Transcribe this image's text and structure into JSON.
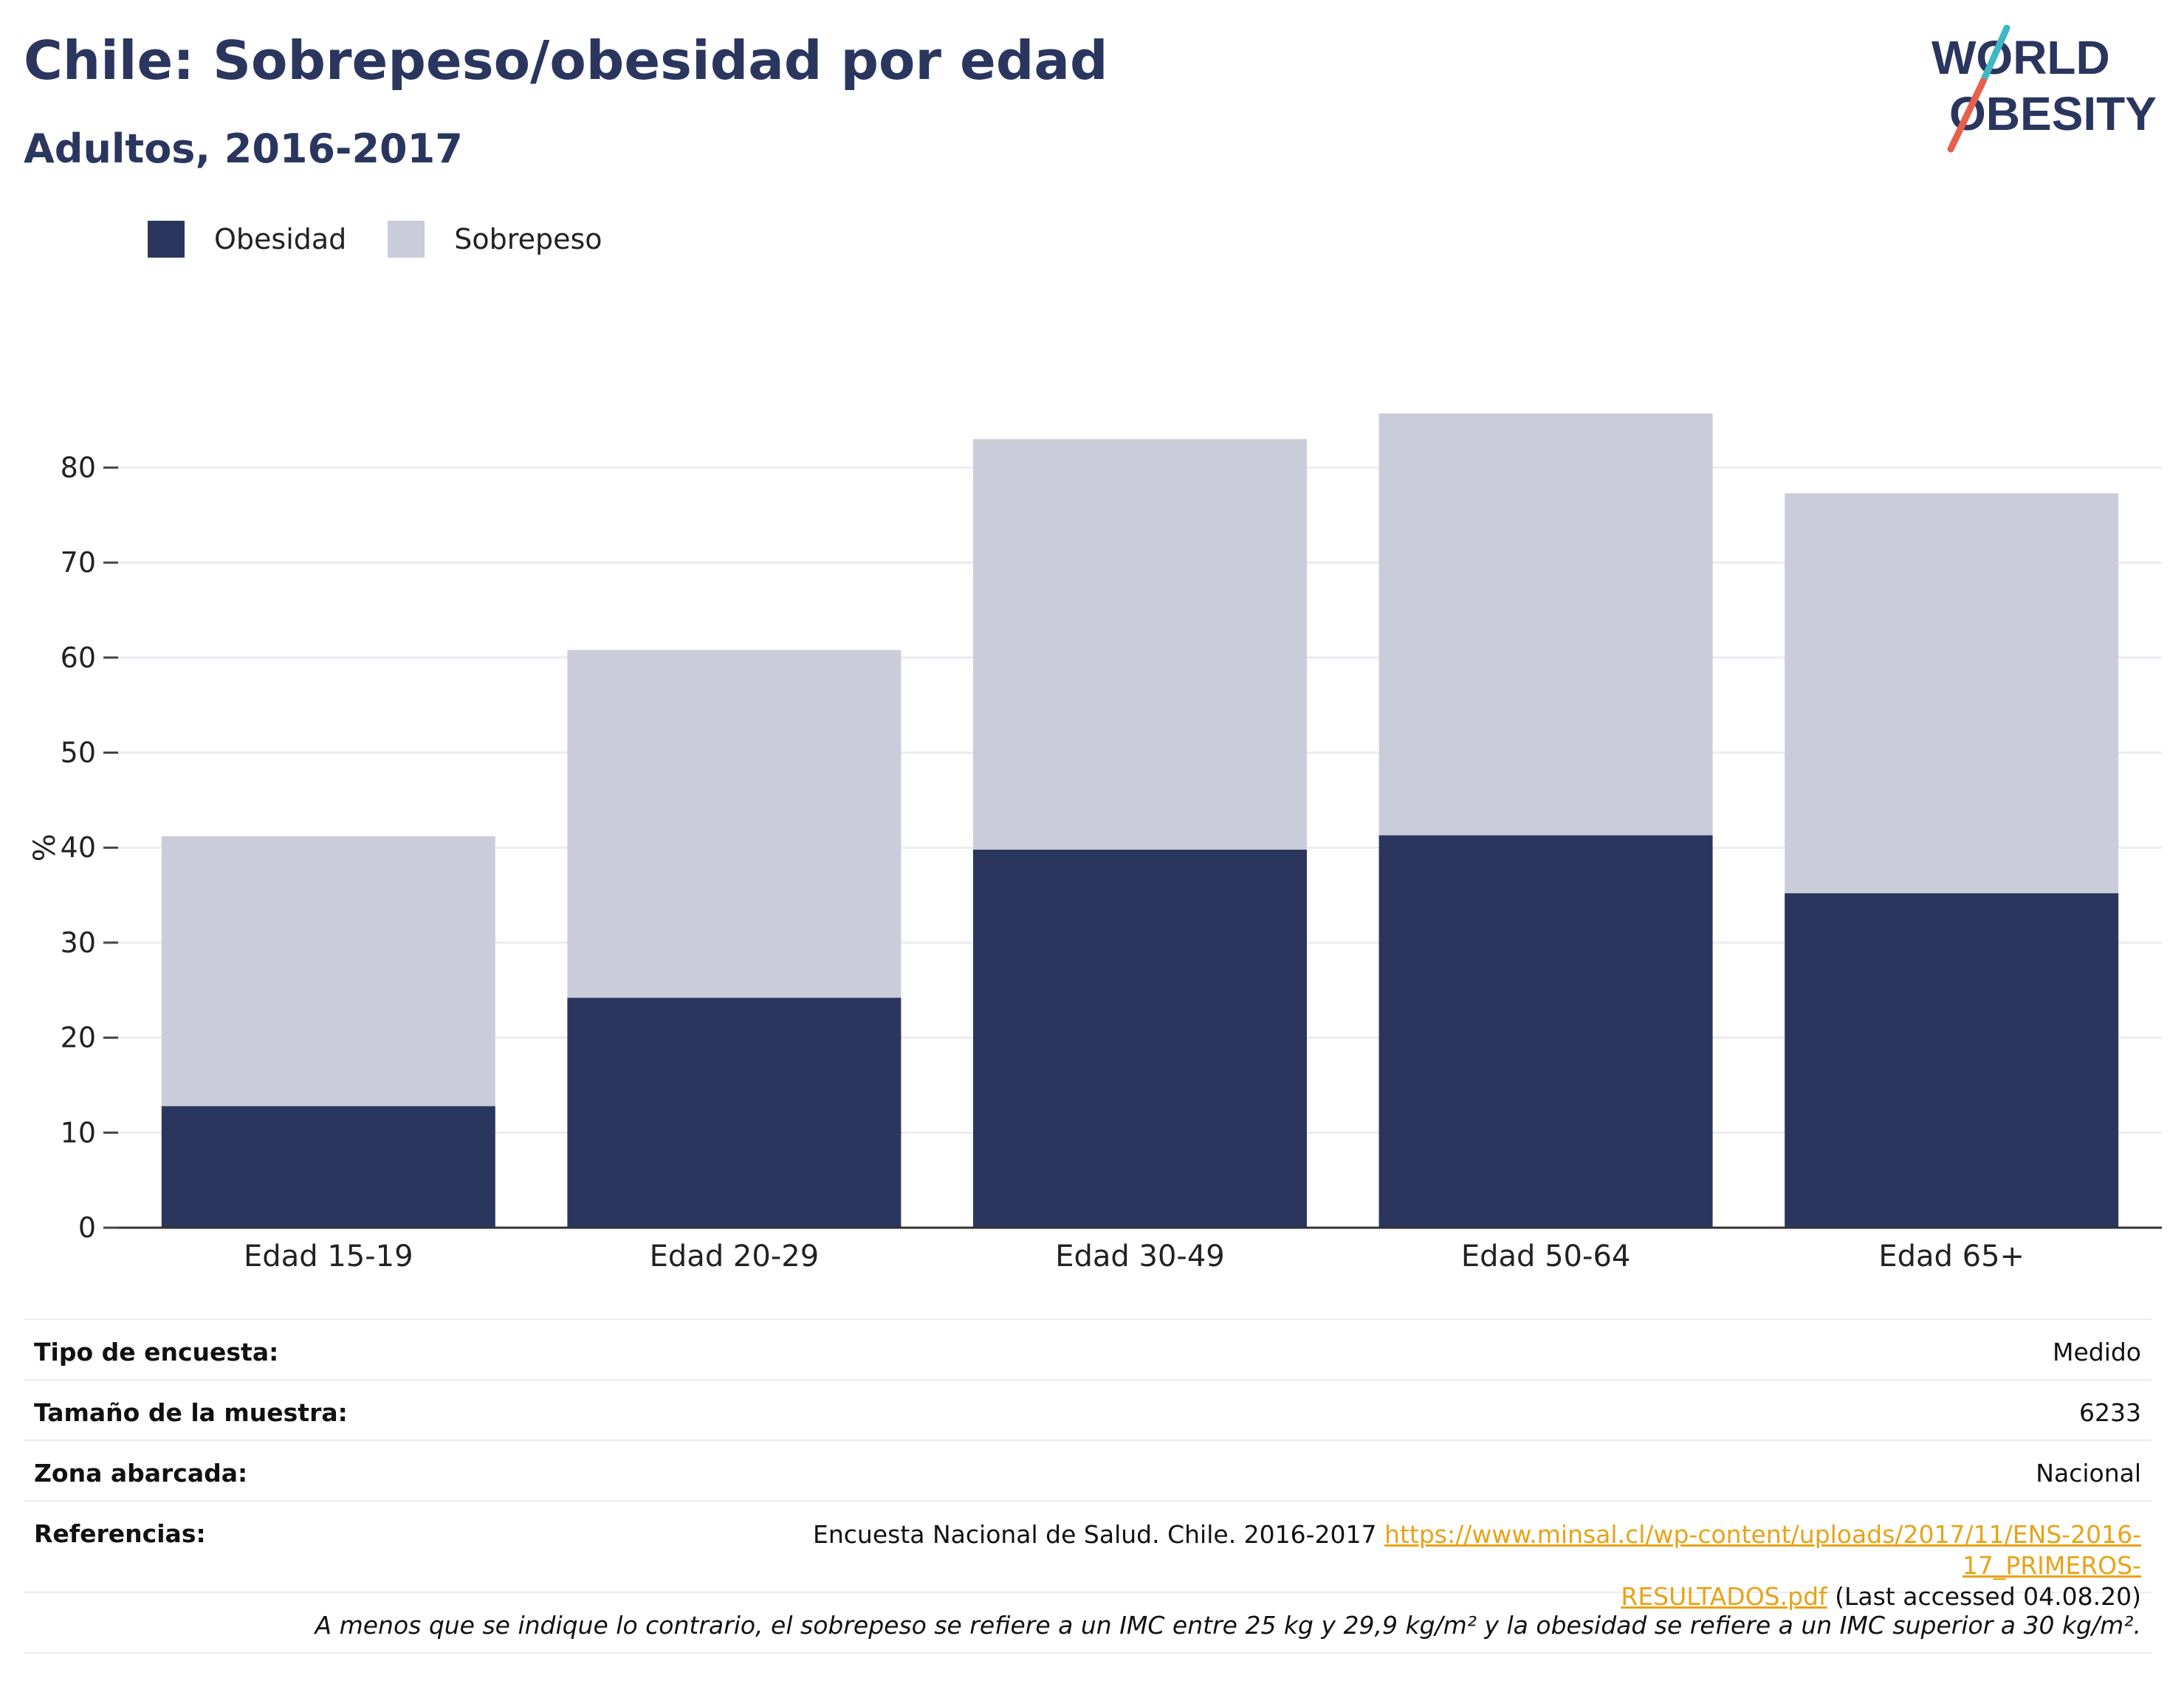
{
  "header": {
    "title": "Chile: Sobrepeso/obesidad por edad",
    "subtitle": "Adultos, 2016-2017"
  },
  "logo": {
    "line1": "WORLD",
    "line2": "OBESITY",
    "colors": {
      "text": "#2b365f",
      "slash_teal": "#3fb8c4",
      "slash_red": "#e8604c"
    }
  },
  "legend": [
    {
      "label": "Obesidad",
      "color": "#2b365f"
    },
    {
      "label": "Sobrepeso",
      "color": "#cacdd9"
    }
  ],
  "chart_data": {
    "type": "bar",
    "stacked": true,
    "categories": [
      "Edad 15-19",
      "Edad 20-29",
      "Edad 30-49",
      "Edad 50-64",
      "Edad 65+"
    ],
    "series": [
      {
        "name": "Obesidad",
        "color": "#2b365f",
        "values": [
          12.8,
          24.2,
          39.8,
          41.3,
          35.2
        ]
      },
      {
        "name": "Sobrepeso",
        "color": "#cacdd9",
        "values": [
          28.4,
          36.6,
          43.2,
          44.4,
          42.1
        ]
      }
    ],
    "ylabel": "%",
    "ylim": [
      0,
      90
    ],
    "yticks": [
      0,
      10,
      20,
      30,
      40,
      50,
      60,
      70,
      80
    ],
    "grid": true,
    "legend_position": "top-left"
  },
  "meta": {
    "survey_type": {
      "label": "Tipo de encuesta:",
      "value": "Medido"
    },
    "sample_size": {
      "label": "Tamaño de la muestra:",
      "value": "6233"
    },
    "area": {
      "label": "Zona abarcada:",
      "value": "Nacional"
    },
    "references": {
      "label": "Referencias:",
      "text": "Encuesta Nacional de Salud. Chile. 2016-2017 ",
      "link_line1": "https://www.minsal.cl/wp-content/uploads/2017/11/ENS-2016-17_PRIMEROS-",
      "link_line2": "RESULTADOS.pdf",
      "after": " (Last accessed 04.08.20)"
    },
    "note": "A menos que se indique lo contrario, el sobrepeso se refiere a un IMC entre 25 kg y 29,9 kg/m² y la obesidad se refiere a un IMC superior a 30 kg/m²."
  }
}
